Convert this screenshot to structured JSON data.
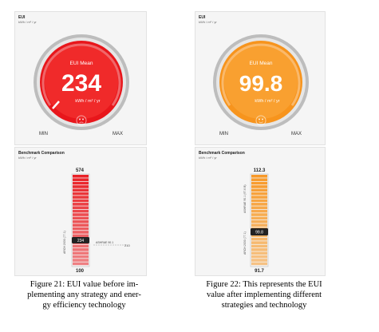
{
  "figures": [
    {
      "eui_panel": {
        "title": "EUI",
        "unit": "kWh / m² / yr"
      },
      "gauge": {
        "label": "EUI Mean",
        "value": "234",
        "unit": "kWh / m² / yr",
        "min_label": "MIN",
        "max_label": "MAX",
        "color": "#e8161b",
        "face_icon": "sad-face-icon"
      },
      "benchmark": {
        "title": "Benchmark Comparison",
        "unit": "kWh / m² / yr",
        "max_value": "574",
        "min_value": "100",
        "current_value": "234",
        "reference_label": "ASHRAE 90.1",
        "reference_value": "210",
        "axis_label": "ARCH 2030 (77.1)",
        "color": "#e8161b"
      },
      "caption_lines": [
        "Figure 21: EUI value before im-",
        "plementing any strategy and ener-",
        "gy efficiency technology"
      ]
    },
    {
      "eui_panel": {
        "title": "EUI",
        "unit": "kWh / m² / yr"
      },
      "gauge": {
        "label": "EUI Mean",
        "value": "99.8",
        "unit": "kWh / m² / yr",
        "min_label": "MIN",
        "max_label": "MAX",
        "color": "#f7941d",
        "face_icon": "smile-face-icon"
      },
      "benchmark": {
        "title": "Benchmark Comparison",
        "unit": "kWh / m² / yr",
        "max_value": "112.3",
        "min_value": "91.7",
        "current_value": "99.8",
        "reference_label": "ASHRAE 90.1 (97.6 B)",
        "axis_label": "ARCH 2030 (77.1)",
        "color": "#f7941d"
      },
      "caption_lines": [
        "Figure 22: This represents the EUI",
        "value after implementing different",
        "strategies and technology"
      ]
    }
  ]
}
